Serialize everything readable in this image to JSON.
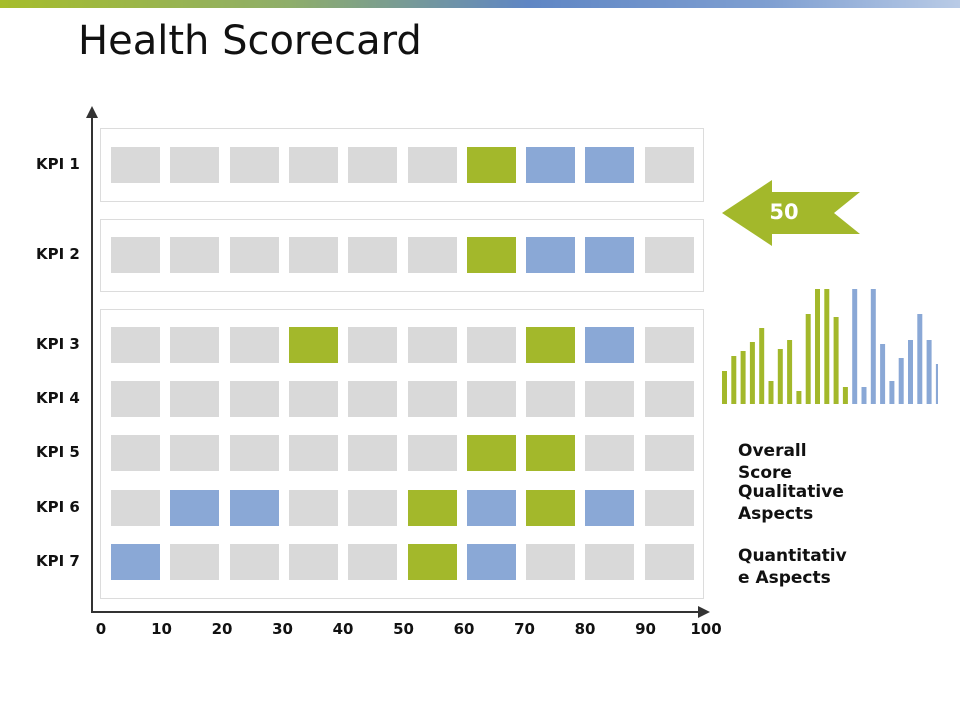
{
  "title": "Health Scorecard",
  "score": "50",
  "legend": {
    "overall": "Overall\nScore",
    "qualitative": "Qualitative\nAspects",
    "quantitative": "Quantitativ\ne Aspects"
  },
  "colors": {
    "empty": "#d9d9d9",
    "green": "#a3b82b",
    "blue": "#8aa8d6",
    "axis": "#333333"
  },
  "chart_data": [
    {
      "type": "heatmap",
      "title": "",
      "x_ticks": [
        "0",
        "10",
        "20",
        "30",
        "40",
        "50",
        "60",
        "70",
        "80",
        "90",
        "100"
      ],
      "rows": [
        "KPI 1",
        "KPI 2",
        "KPI 3",
        "KPI 4",
        "KPI 5",
        "KPI 6",
        "KPI 7"
      ],
      "cells": [
        [
          "e",
          "e",
          "e",
          "e",
          "e",
          "e",
          "g",
          "b",
          "b",
          "e"
        ],
        [
          "e",
          "e",
          "e",
          "e",
          "e",
          "e",
          "g",
          "b",
          "b",
          "e"
        ],
        [
          "e",
          "e",
          "e",
          "g",
          "e",
          "e",
          "e",
          "g",
          "b",
          "e"
        ],
        [
          "e",
          "e",
          "e",
          "e",
          "e",
          "e",
          "e",
          "e",
          "e",
          "e"
        ],
        [
          "e",
          "e",
          "e",
          "e",
          "e",
          "e",
          "g",
          "g",
          "e",
          "e"
        ],
        [
          "e",
          "b",
          "b",
          "e",
          "e",
          "g",
          "b",
          "g",
          "b",
          "e"
        ],
        [
          "b",
          "e",
          "e",
          "e",
          "e",
          "g",
          "b",
          "e",
          "e",
          "e"
        ]
      ]
    },
    {
      "type": "bar",
      "title": "",
      "series": [
        {
          "color": "green",
          "values": [
            33,
            48,
            53,
            62,
            76,
            23,
            55,
            64,
            13,
            90,
            115,
            115,
            87,
            17
          ]
        },
        {
          "color": "blue",
          "values": [
            115,
            17,
            115,
            60,
            23,
            46,
            64,
            90,
            64,
            40
          ]
        }
      ]
    }
  ]
}
